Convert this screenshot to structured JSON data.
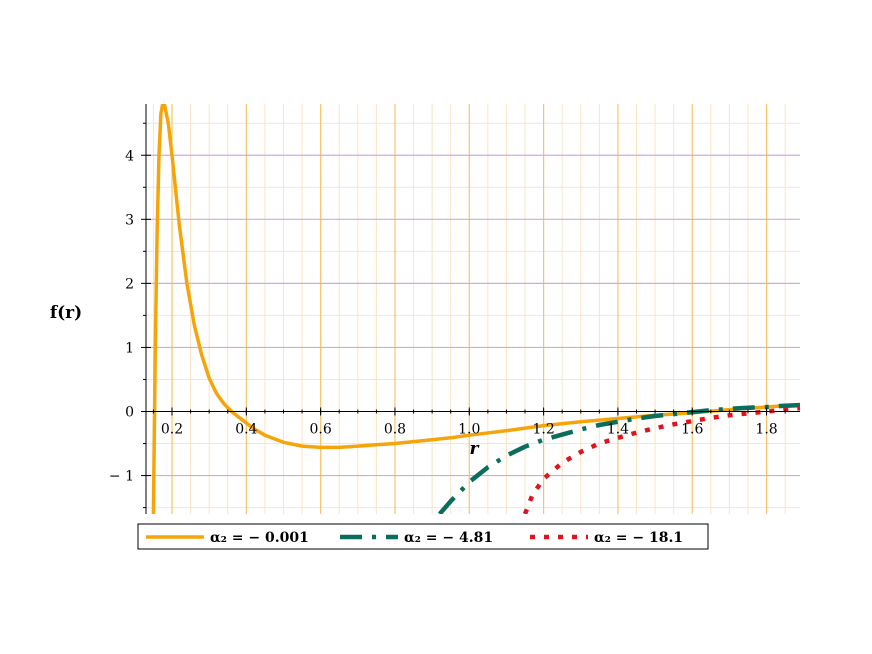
{
  "chart_data": {
    "type": "line",
    "title": "",
    "xlabel": "r",
    "ylabel": "f(r)",
    "xlim": [
      0.13,
      1.89
    ],
    "ylim": [
      -1.6,
      4.8
    ],
    "x_ticks": [
      0.2,
      0.4,
      0.6,
      0.8,
      1.0,
      1.2,
      1.4,
      1.6,
      1.8
    ],
    "x_tick_labels": [
      "0.2",
      "0.4",
      "0.6",
      "0.8",
      "1.0",
      "1.2",
      "1.4",
      "1.6",
      "1.8"
    ],
    "y_ticks": [
      -1,
      0,
      1,
      2,
      3,
      4
    ],
    "y_tick_labels": [
      "− 1",
      "0",
      "1",
      "2",
      "3",
      "4"
    ],
    "grid": true,
    "legend_position": "bottom",
    "colors": {
      "grid_vertical": "#f7c46a",
      "grid_horizontal": "#d7a6e0",
      "minor_grid": "#fbe5c3"
    },
    "series": [
      {
        "name": "α₂ = − 0.001",
        "color": "#f5a50a",
        "style": "solid",
        "x": [
          0.15,
          0.152,
          0.155,
          0.16,
          0.165,
          0.17,
          0.175,
          0.18,
          0.19,
          0.2,
          0.21,
          0.22,
          0.24,
          0.26,
          0.28,
          0.3,
          0.32,
          0.34,
          0.36,
          0.38,
          0.4,
          0.42,
          0.45,
          0.5,
          0.55,
          0.6,
          0.65,
          0.7,
          0.75,
          0.8,
          0.85,
          0.9,
          0.95,
          1.0,
          1.1,
          1.2,
          1.3,
          1.4,
          1.5,
          1.6,
          1.7,
          1.8,
          1.89
        ],
        "values": [
          -1.6,
          -0.5,
          1.0,
          2.8,
          4.0,
          4.65,
          4.8,
          4.78,
          4.5,
          4.0,
          3.45,
          2.9,
          2.0,
          1.35,
          0.88,
          0.52,
          0.28,
          0.12,
          0.0,
          -0.09,
          -0.18,
          -0.27,
          -0.37,
          -0.48,
          -0.54,
          -0.56,
          -0.56,
          -0.54,
          -0.52,
          -0.5,
          -0.47,
          -0.44,
          -0.41,
          -0.37,
          -0.3,
          -0.22,
          -0.16,
          -0.11,
          -0.06,
          -0.02,
          0.03,
          0.07,
          0.11
        ]
      },
      {
        "name": "α₂ = − 4.81",
        "color": "#0b6e5c",
        "style": "dashdot",
        "x": [
          0.92,
          0.95,
          1.0,
          1.05,
          1.1,
          1.15,
          1.2,
          1.25,
          1.3,
          1.35,
          1.4,
          1.45,
          1.5,
          1.55,
          1.6,
          1.65,
          1.7,
          1.75,
          1.8,
          1.85,
          1.89
        ],
        "values": [
          -1.6,
          -1.4,
          -1.1,
          -0.87,
          -0.69,
          -0.55,
          -0.44,
          -0.36,
          -0.28,
          -0.21,
          -0.16,
          -0.11,
          -0.07,
          -0.04,
          -0.01,
          0.02,
          0.04,
          0.06,
          0.07,
          0.09,
          0.1
        ]
      },
      {
        "name": "α₂ = − 18.1",
        "color": "#e0141e",
        "style": "dotted",
        "x": [
          1.15,
          1.17,
          1.2,
          1.25,
          1.3,
          1.35,
          1.4,
          1.45,
          1.5,
          1.55,
          1.6,
          1.65,
          1.7,
          1.75,
          1.8,
          1.85,
          1.89
        ],
        "values": [
          -1.6,
          -1.3,
          -1.05,
          -0.8,
          -0.63,
          -0.5,
          -0.41,
          -0.33,
          -0.26,
          -0.2,
          -0.15,
          -0.1,
          -0.06,
          -0.03,
          0.0,
          0.03,
          0.05
        ]
      }
    ]
  }
}
